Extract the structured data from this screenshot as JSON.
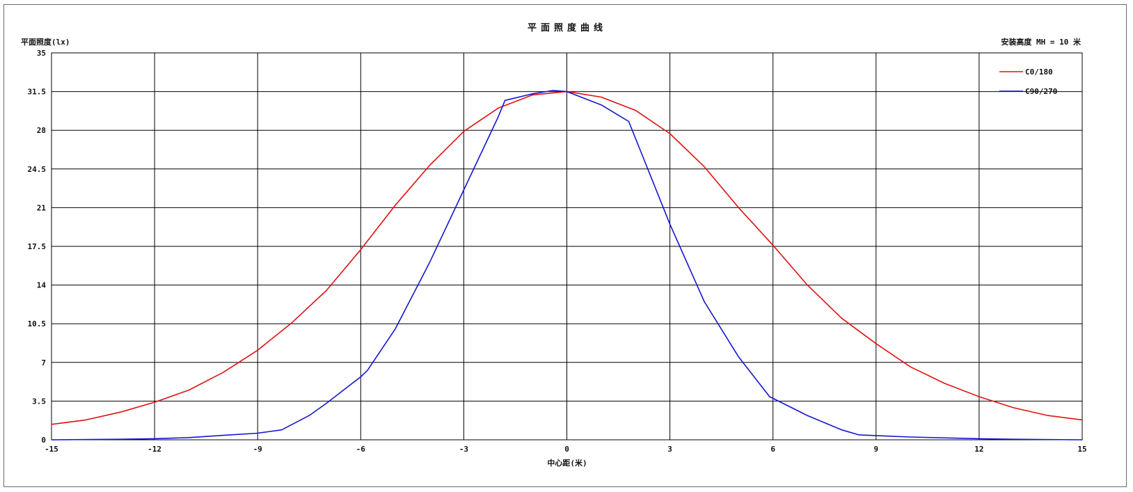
{
  "chart_data": {
    "type": "line",
    "title": "平面照度曲线",
    "ylabel": "平面照度(lx)",
    "xlabel": "中心距(米)",
    "note": "安装高度 MH = 10 米",
    "xlim": [
      -15,
      15
    ],
    "ylim": [
      0,
      35
    ],
    "x_ticks": [
      "-15",
      "-12",
      "-9",
      "-6",
      "-3",
      "0",
      "3",
      "6",
      "9",
      "12",
      "15"
    ],
    "y_ticks": [
      "0",
      "3.5",
      "7",
      "10.5",
      "14",
      "17.5",
      "21",
      "24.5",
      "28",
      "31.5",
      "35"
    ],
    "grid": true,
    "legend_position": "top-right",
    "series": [
      {
        "name": "C0/180",
        "color": "#e01010",
        "points": [
          [
            -15,
            1.4
          ],
          [
            -14,
            1.8
          ],
          [
            -13,
            2.5
          ],
          [
            -12,
            3.4
          ],
          [
            -11,
            4.5
          ],
          [
            -10,
            6.1
          ],
          [
            -9,
            8.1
          ],
          [
            -8,
            10.6
          ],
          [
            -7,
            13.5
          ],
          [
            -6,
            17.2
          ],
          [
            -5,
            21.2
          ],
          [
            -4,
            24.8
          ],
          [
            -3,
            27.9
          ],
          [
            -2,
            30.0
          ],
          [
            -1,
            31.2
          ],
          [
            0,
            31.5
          ],
          [
            1,
            31.0
          ],
          [
            2,
            29.8
          ],
          [
            3,
            27.7
          ],
          [
            4,
            24.7
          ],
          [
            5,
            21.0
          ],
          [
            6,
            17.6
          ],
          [
            7,
            14.0
          ],
          [
            8,
            11.0
          ],
          [
            9,
            8.7
          ],
          [
            10,
            6.6
          ],
          [
            11,
            5.1
          ],
          [
            12,
            3.9
          ],
          [
            13,
            2.9
          ],
          [
            14,
            2.2
          ],
          [
            15,
            1.8
          ]
        ]
      },
      {
        "name": "C90/270",
        "color": "#1515d0",
        "points": [
          [
            -15,
            0.0
          ],
          [
            -13,
            0.05
          ],
          [
            -12,
            0.1
          ],
          [
            -11,
            0.2
          ],
          [
            -10,
            0.4
          ],
          [
            -9,
            0.6
          ],
          [
            -8.3,
            0.9
          ],
          [
            -7.5,
            2.2
          ],
          [
            -7,
            3.3
          ],
          [
            -6,
            5.7
          ],
          [
            -5.8,
            6.3
          ],
          [
            -5,
            10.0
          ],
          [
            -4,
            16.0
          ],
          [
            -3,
            22.6
          ],
          [
            -2,
            29.2
          ],
          [
            -1.8,
            30.7
          ],
          [
            -1,
            31.3
          ],
          [
            -0.4,
            31.6
          ],
          [
            0,
            31.5
          ],
          [
            1,
            30.3
          ],
          [
            1.8,
            28.8
          ],
          [
            3,
            19.5
          ],
          [
            4,
            12.5
          ],
          [
            5,
            7.5
          ],
          [
            5.9,
            3.9
          ],
          [
            7,
            2.2
          ],
          [
            8,
            0.9
          ],
          [
            8.5,
            0.45
          ],
          [
            10,
            0.25
          ],
          [
            12,
            0.1
          ],
          [
            13,
            0.05
          ],
          [
            15,
            0.0
          ]
        ]
      }
    ]
  }
}
